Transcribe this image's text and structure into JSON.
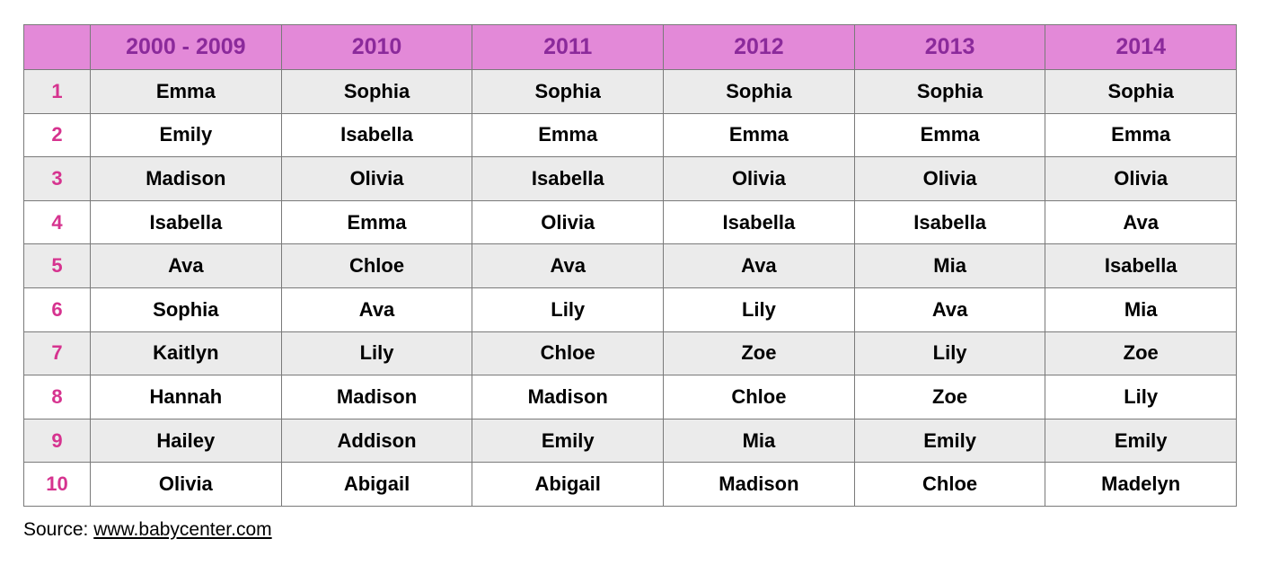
{
  "table": {
    "header": [
      "",
      "2000 - 2009",
      "2010",
      "2011",
      "2012",
      "2013",
      "2014"
    ],
    "rows": [
      [
        "1",
        "Emma",
        "Sophia",
        "Sophia",
        "Sophia",
        "Sophia",
        "Sophia"
      ],
      [
        "2",
        "Emily",
        "Isabella",
        "Emma",
        "Emma",
        "Emma",
        "Emma"
      ],
      [
        "3",
        "Madison",
        "Olivia",
        "Isabella",
        "Olivia",
        "Olivia",
        "Olivia"
      ],
      [
        "4",
        "Isabella",
        "Emma",
        "Olivia",
        "Isabella",
        "Isabella",
        "Ava"
      ],
      [
        "5",
        "Ava",
        "Chloe",
        "Ava",
        "Ava",
        "Mia",
        "Isabella"
      ],
      [
        "6",
        "Sophia",
        "Ava",
        "Lily",
        "Lily",
        "Ava",
        "Mia"
      ],
      [
        "7",
        "Kaitlyn",
        "Lily",
        "Chloe",
        "Zoe",
        "Lily",
        "Zoe"
      ],
      [
        "8",
        "Hannah",
        "Madison",
        "Madison",
        "Chloe",
        "Zoe",
        "Lily"
      ],
      [
        "9",
        "Hailey",
        "Addison",
        "Emily",
        "Mia",
        "Emily",
        "Emily"
      ],
      [
        "10",
        "Olivia",
        "Abigail",
        "Abigail",
        "Madison",
        "Chloe",
        "Madelyn"
      ]
    ]
  },
  "source": {
    "label": "Source: ",
    "link_text": "www.babycenter.com"
  },
  "colors": {
    "header_bg": "#e389d8",
    "header_text": "#8b2a9b",
    "rank_text": "#d6338f",
    "shaded_row_bg": "#ebebeb",
    "border": "#7a7a7a"
  }
}
